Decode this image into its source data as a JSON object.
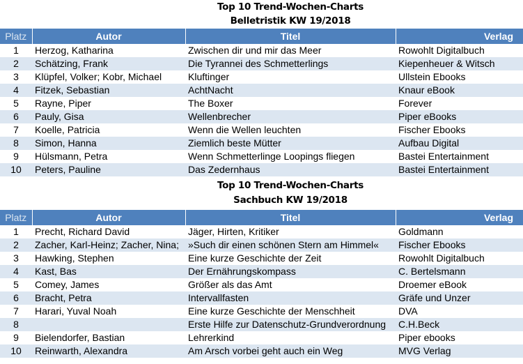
{
  "tables": [
    {
      "title1": "Top 10 Trend-Wochen-Charts",
      "title2": "Belletristik KW 19/2018",
      "headers": {
        "platz": "Platz",
        "autor": "Autor",
        "titel": "Titel",
        "verlag": "Verlag"
      },
      "rows": [
        {
          "platz": "1",
          "autor": "Herzog, Katharina",
          "titel": "Zwischen dir und mir das Meer",
          "verlag": "Rowohlt Digitalbuch"
        },
        {
          "platz": "2",
          "autor": "Schätzing, Frank",
          "titel": "Die Tyrannei des Schmetterlings",
          "verlag": "Kiepenheuer & Witsch"
        },
        {
          "platz": "3",
          "autor": "Klüpfel, Volker; Kobr, Michael",
          "titel": "Kluftinger",
          "verlag": "Ullstein Ebooks"
        },
        {
          "platz": "4",
          "autor": "Fitzek, Sebastian",
          "titel": "AchtNacht",
          "verlag": "Knaur eBook"
        },
        {
          "platz": "5",
          "autor": "Rayne, Piper",
          "titel": "The Boxer",
          "verlag": "Forever"
        },
        {
          "platz": "6",
          "autor": "Pauly, Gisa",
          "titel": "Wellenbrecher",
          "verlag": "Piper eBooks"
        },
        {
          "platz": "7",
          "autor": "Koelle, Patricia",
          "titel": "Wenn die Wellen leuchten",
          "verlag": "Fischer Ebooks"
        },
        {
          "platz": "8",
          "autor": "Simon, Hanna",
          "titel": "Ziemlich beste Mütter",
          "verlag": "Aufbau Digital"
        },
        {
          "platz": "9",
          "autor": "Hülsmann, Petra",
          "titel": "Wenn Schmetterlinge Loopings fliegen",
          "verlag": "Bastei Entertainment"
        },
        {
          "platz": "10",
          "autor": "Peters, Pauline",
          "titel": "Das Zedernhaus",
          "verlag": "Bastei Entertainment"
        }
      ]
    },
    {
      "title1": "Top 10 Trend-Wochen-Charts",
      "title2": "Sachbuch KW 19/2018",
      "headers": {
        "platz": "Platz",
        "autor": "Autor",
        "titel": "Titel",
        "verlag": "Verlag"
      },
      "rows": [
        {
          "platz": "1",
          "autor": "Precht, Richard David",
          "titel": "Jäger, Hirten, Kritiker",
          "verlag": "Goldmann"
        },
        {
          "platz": "2",
          "autor": "Zacher, Karl-Heinz; Zacher, Nina;",
          "titel": "»Such dir einen schönen Stern am Himmel«",
          "verlag": "Fischer Ebooks"
        },
        {
          "platz": "3",
          "autor": "Hawking, Stephen",
          "titel": "Eine kurze Geschichte der Zeit",
          "verlag": "Rowohlt Digitalbuch"
        },
        {
          "platz": "4",
          "autor": "Kast, Bas",
          "titel": "Der Ernährungskompass",
          "verlag": "C. Bertelsmann"
        },
        {
          "platz": "5",
          "autor": "Comey, James",
          "titel": "Größer als das Amt",
          "verlag": "Droemer eBook"
        },
        {
          "platz": "6",
          "autor": "Bracht, Petra",
          "titel": "Intervallfasten",
          "verlag": "Gräfe und Unzer"
        },
        {
          "platz": "7",
          "autor": "Harari, Yuval Noah",
          "titel": "Eine kurze Geschichte der Menschheit",
          "verlag": "DVA"
        },
        {
          "platz": "8",
          "autor": "",
          "titel": "Erste Hilfe zur Datenschutz-Grundverordnung",
          "verlag": "C.H.Beck"
        },
        {
          "platz": "9",
          "autor": "Bielendorfer, Bastian",
          "titel": "Lehrerkind",
          "verlag": "Piper ebooks"
        },
        {
          "platz": "10",
          "autor": "Reinwarth, Alexandra",
          "titel": "Am Arsch vorbei geht auch ein Weg",
          "verlag": "MVG Verlag"
        }
      ]
    }
  ],
  "colors": {
    "header": "#4f81bd",
    "alt_row": "#dce6f1"
  }
}
